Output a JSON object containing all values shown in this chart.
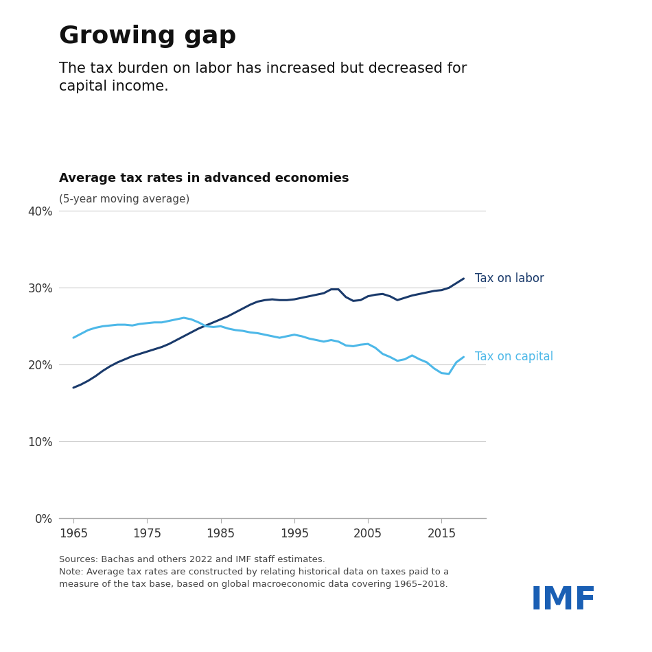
{
  "title": "Growing gap",
  "subtitle": "The tax burden on labor has increased but decreased for\ncapital income.",
  "chart_title": "Average tax rates in advanced economies",
  "chart_subtitle": "(5-year moving average)",
  "source_text": "Sources: Bachas and others 2022 and IMF staff estimates.\nNote: Average tax rates are constructed by relating historical data on taxes paid to a\nmeasure of the tax base, based on global macroeconomic data covering 1965–2018.",
  "labor_color": "#1a3a6b",
  "capital_color": "#4db8e8",
  "background_color": "#ffffff",
  "imf_color": "#1a5fb4",
  "years": [
    1965,
    1966,
    1967,
    1968,
    1969,
    1970,
    1971,
    1972,
    1973,
    1974,
    1975,
    1976,
    1977,
    1978,
    1979,
    1980,
    1981,
    1982,
    1983,
    1984,
    1985,
    1986,
    1987,
    1988,
    1989,
    1990,
    1991,
    1992,
    1993,
    1994,
    1995,
    1996,
    1997,
    1998,
    1999,
    2000,
    2001,
    2002,
    2003,
    2004,
    2005,
    2006,
    2007,
    2008,
    2009,
    2010,
    2011,
    2012,
    2013,
    2014,
    2015,
    2016,
    2017,
    2018
  ],
  "tax_labor": [
    17.0,
    17.4,
    17.9,
    18.5,
    19.2,
    19.8,
    20.3,
    20.7,
    21.1,
    21.4,
    21.7,
    22.0,
    22.3,
    22.7,
    23.2,
    23.7,
    24.2,
    24.7,
    25.1,
    25.5,
    25.9,
    26.3,
    26.8,
    27.3,
    27.8,
    28.2,
    28.4,
    28.5,
    28.4,
    28.4,
    28.5,
    28.7,
    28.9,
    29.1,
    29.3,
    29.8,
    29.8,
    28.8,
    28.3,
    28.4,
    28.9,
    29.1,
    29.2,
    28.9,
    28.4,
    28.7,
    29.0,
    29.2,
    29.4,
    29.6,
    29.7,
    30.0,
    30.6,
    31.2
  ],
  "tax_capital": [
    23.5,
    24.0,
    24.5,
    24.8,
    25.0,
    25.1,
    25.2,
    25.2,
    25.1,
    25.3,
    25.4,
    25.5,
    25.5,
    25.7,
    25.9,
    26.1,
    25.9,
    25.5,
    25.0,
    24.9,
    25.0,
    24.7,
    24.5,
    24.4,
    24.2,
    24.1,
    23.9,
    23.7,
    23.5,
    23.7,
    23.9,
    23.7,
    23.4,
    23.2,
    23.0,
    23.2,
    23.0,
    22.5,
    22.4,
    22.6,
    22.7,
    22.2,
    21.4,
    21.0,
    20.5,
    20.7,
    21.2,
    20.7,
    20.3,
    19.5,
    18.9,
    18.8,
    20.3,
    21.0
  ],
  "ylim": [
    0,
    42
  ],
  "yticks": [
    0,
    10,
    20,
    30,
    40
  ],
  "xlim": [
    1963,
    2021
  ],
  "xticks": [
    1965,
    1975,
    1985,
    1995,
    2005,
    2015
  ],
  "label_labor": "Tax on labor",
  "label_capital": "Tax on capital",
  "title_fontsize": 26,
  "subtitle_fontsize": 15,
  "chart_title_fontsize": 13,
  "chart_subtitle_fontsize": 11,
  "tick_fontsize": 12,
  "label_fontsize": 12,
  "source_fontsize": 9.5,
  "imf_fontsize": 34
}
